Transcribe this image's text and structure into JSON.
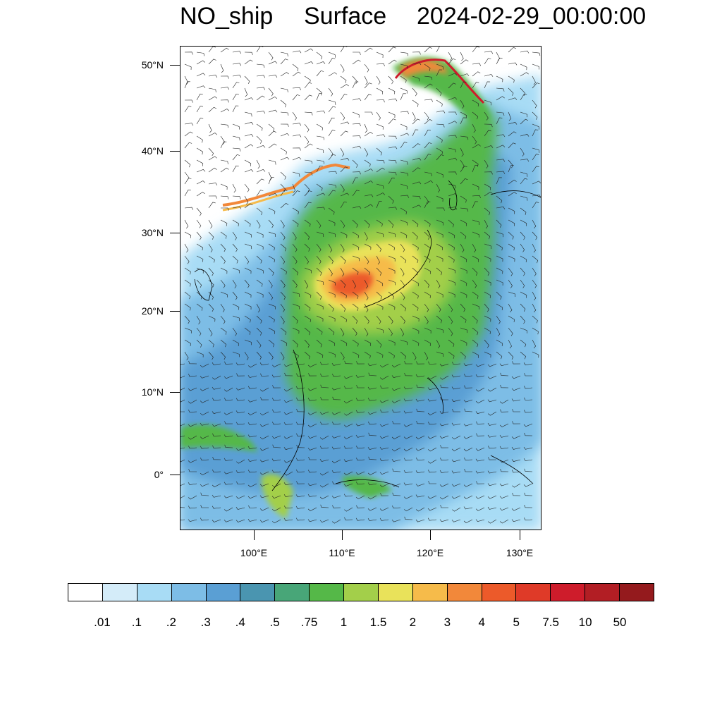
{
  "title": {
    "variable": "NO_ship",
    "level": "Surface",
    "time": "2024-02-29_00:00:00"
  },
  "map": {
    "lat_labels": [
      "50°N",
      "40°N",
      "30°N",
      "20°N",
      "10°N",
      "0°"
    ],
    "lon_labels": [
      "100°E",
      "110°E",
      "120°E",
      "130°E"
    ],
    "lat_values": [
      50,
      40,
      30,
      20,
      10,
      0
    ],
    "lon_values": [
      100,
      110,
      120,
      130
    ],
    "lat_range": [
      -6.5,
      52.5
    ],
    "lon_range": [
      92,
      132.5
    ],
    "features": [
      "wind-barbs",
      "coastlines",
      "country-borders",
      "filled-contours"
    ]
  },
  "colorbar": {
    "labels": [
      ".01",
      ".1",
      ".2",
      ".3",
      ".4",
      ".5",
      ".75",
      "1",
      "1.5",
      "2",
      "3",
      "4",
      "5",
      "7.5",
      "10",
      "50"
    ],
    "colors": [
      "#ffffff",
      "#d4ecf9",
      "#a8dcf5",
      "#7dbde6",
      "#5a9fd4",
      "#4a95b0",
      "#48a678",
      "#55b848",
      "#a3cf4a",
      "#e9e25a",
      "#f6bb4a",
      "#f2883a",
      "#ec5a2a",
      "#df3a28",
      "#ce1c2b",
      "#b21e24",
      "#941a1d"
    ]
  }
}
